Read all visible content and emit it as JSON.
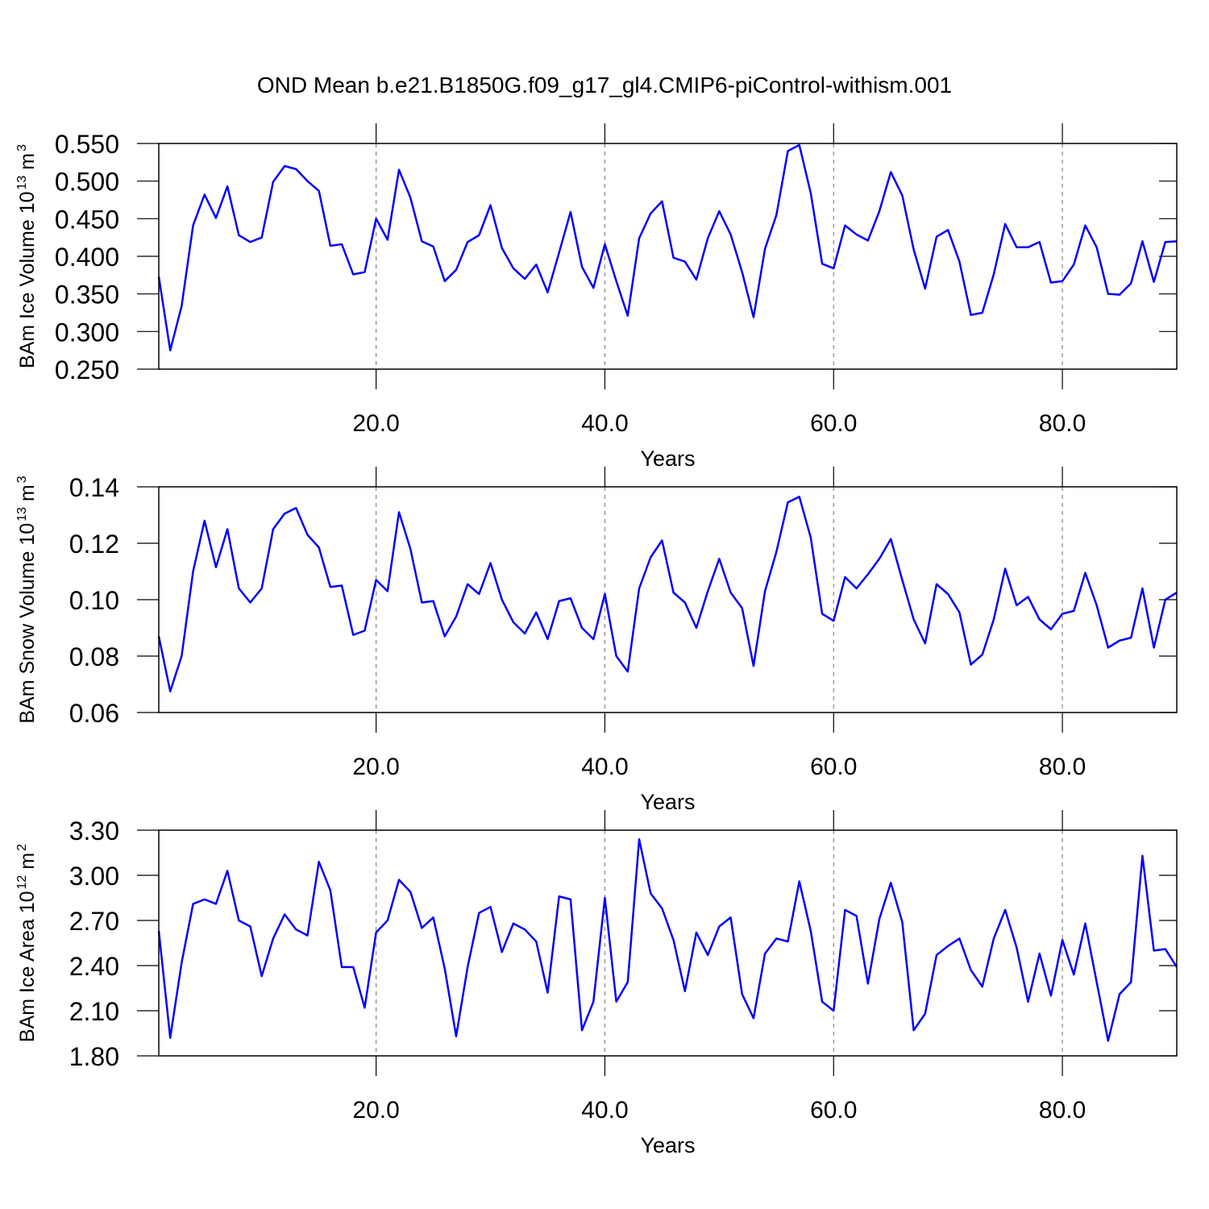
{
  "chart_data": [
    {
      "type": "line",
      "title": "OND Mean b.e21.B1850G.f09_g17_gl4.CMIP6-piControl-withism.001",
      "ylabel": [
        "BAm Ice Volume 10",
        "13",
        "m",
        "3"
      ],
      "xlabel": "Years",
      "x": [
        1,
        2,
        3,
        4,
        5,
        6,
        7,
        8,
        9,
        10,
        11,
        12,
        13,
        14,
        15,
        16,
        17,
        18,
        19,
        20,
        21,
        22,
        23,
        24,
        25,
        26,
        27,
        28,
        29,
        30,
        31,
        32,
        33,
        34,
        35,
        36,
        37,
        38,
        39,
        40,
        41,
        42,
        43,
        44,
        45,
        46,
        47,
        48,
        49,
        50,
        51,
        52,
        53,
        54,
        55,
        56,
        57,
        58,
        59,
        60,
        61,
        62,
        63,
        64,
        65,
        66,
        67,
        68,
        69,
        70,
        71,
        72,
        73,
        74,
        75,
        76,
        77,
        78,
        79,
        80,
        81,
        82,
        83,
        84,
        85,
        86,
        87,
        88,
        89,
        90
      ],
      "series": [
        {
          "color": "#0000ff",
          "values": [
            0.373,
            0.275,
            0.334,
            0.441,
            0.482,
            0.451,
            0.493,
            0.428,
            0.419,
            0.425,
            0.499,
            0.52,
            0.516,
            0.5,
            0.487,
            0.414,
            0.416,
            0.376,
            0.379,
            0.45,
            0.422,
            0.515,
            0.478,
            0.42,
            0.413,
            0.367,
            0.382,
            0.419,
            0.428,
            0.468,
            0.411,
            0.384,
            0.37,
            0.389,
            0.352,
            0.405,
            0.459,
            0.386,
            0.358,
            0.416,
            0.367,
            0.321,
            0.424,
            0.457,
            0.473,
            0.398,
            0.393,
            0.369,
            0.424,
            0.46,
            0.429,
            0.379,
            0.319,
            0.41,
            0.455,
            0.54,
            0.548,
            0.484,
            0.39,
            0.384,
            0.441,
            0.429,
            0.421,
            0.46,
            0.512,
            0.481,
            0.409,
            0.357,
            0.426,
            0.435,
            0.393,
            0.322,
            0.325,
            0.376,
            0.443,
            0.412,
            0.412,
            0.419,
            0.365,
            0.367,
            0.389,
            0.441,
            0.412,
            0.35,
            0.349,
            0.364,
            0.42,
            0.366,
            0.419,
            0.42
          ]
        }
      ],
      "xlim": [
        1,
        90
      ],
      "xticks": [
        {
          "value": 20,
          "label": "20.0"
        },
        {
          "value": 40,
          "label": "40.0"
        },
        {
          "value": 60,
          "label": "60.0"
        },
        {
          "value": 80,
          "label": "80.0"
        }
      ],
      "ylim": [
        0.25,
        0.55
      ],
      "yticks": [
        {
          "value": 0.25,
          "label": "0.250"
        },
        {
          "value": 0.3,
          "label": "0.300"
        },
        {
          "value": 0.35,
          "label": "0.350"
        },
        {
          "value": 0.4,
          "label": "0.400"
        },
        {
          "value": 0.45,
          "label": "0.450"
        },
        {
          "value": 0.5,
          "label": "0.500"
        },
        {
          "value": 0.55,
          "label": "0.550"
        }
      ],
      "grid": true
    },
    {
      "type": "line",
      "ylabel": [
        "BAm Snow Volume 10",
        "13",
        "m",
        "3"
      ],
      "xlabel": "Years",
      "x": [
        1,
        2,
        3,
        4,
        5,
        6,
        7,
        8,
        9,
        10,
        11,
        12,
        13,
        14,
        15,
        16,
        17,
        18,
        19,
        20,
        21,
        22,
        23,
        24,
        25,
        26,
        27,
        28,
        29,
        30,
        31,
        32,
        33,
        34,
        35,
        36,
        37,
        38,
        39,
        40,
        41,
        42,
        43,
        44,
        45,
        46,
        47,
        48,
        49,
        50,
        51,
        52,
        53,
        54,
        55,
        56,
        57,
        58,
        59,
        60,
        61,
        62,
        63,
        64,
        65,
        66,
        67,
        68,
        69,
        70,
        71,
        72,
        73,
        74,
        75,
        76,
        77,
        78,
        79,
        80,
        81,
        82,
        83,
        84,
        85,
        86,
        87,
        88,
        89,
        90
      ],
      "series": [
        {
          "color": "#0000ff",
          "values": [
            0.087,
            0.0675,
            0.08,
            0.11,
            0.128,
            0.1115,
            0.125,
            0.104,
            0.099,
            0.104,
            0.125,
            0.1305,
            0.1325,
            0.123,
            0.1185,
            0.1045,
            0.105,
            0.0875,
            0.089,
            0.107,
            0.103,
            0.131,
            0.118,
            0.099,
            0.0995,
            0.087,
            0.094,
            0.1055,
            0.102,
            0.113,
            0.1,
            0.092,
            0.088,
            0.0955,
            0.086,
            0.0995,
            0.1005,
            0.09,
            0.086,
            0.102,
            0.08,
            0.0745,
            0.104,
            0.115,
            0.121,
            0.1025,
            0.099,
            0.09,
            0.103,
            0.1145,
            0.1025,
            0.097,
            0.0765,
            0.103,
            0.117,
            0.1345,
            0.1365,
            0.122,
            0.095,
            0.0925,
            0.108,
            0.104,
            0.109,
            0.1145,
            0.1215,
            0.107,
            0.093,
            0.0845,
            0.1055,
            0.102,
            0.0955,
            0.077,
            0.0805,
            0.093,
            0.111,
            0.098,
            0.101,
            0.093,
            0.0895,
            0.095,
            0.096,
            0.1095,
            0.098,
            0.083,
            0.0855,
            0.0865,
            0.104,
            0.083,
            0.1,
            0.1025
          ]
        }
      ],
      "xlim": [
        1,
        90
      ],
      "xticks": [
        {
          "value": 20,
          "label": "20.0"
        },
        {
          "value": 40,
          "label": "40.0"
        },
        {
          "value": 60,
          "label": "60.0"
        },
        {
          "value": 80,
          "label": "80.0"
        }
      ],
      "ylim": [
        0.06,
        0.14
      ],
      "yticks": [
        {
          "value": 0.06,
          "label": "0.06"
        },
        {
          "value": 0.08,
          "label": "0.08"
        },
        {
          "value": 0.1,
          "label": "0.10"
        },
        {
          "value": 0.12,
          "label": "0.12"
        },
        {
          "value": 0.14,
          "label": "0.14"
        }
      ],
      "grid": true
    },
    {
      "type": "line",
      "ylabel": [
        "BAm Ice Area 10",
        "12",
        "m",
        "2"
      ],
      "xlabel": "Years",
      "x": [
        1,
        2,
        3,
        4,
        5,
        6,
        7,
        8,
        9,
        10,
        11,
        12,
        13,
        14,
        15,
        16,
        17,
        18,
        19,
        20,
        21,
        22,
        23,
        24,
        25,
        26,
        27,
        28,
        29,
        30,
        31,
        32,
        33,
        34,
        35,
        36,
        37,
        38,
        39,
        40,
        41,
        42,
        43,
        44,
        45,
        46,
        47,
        48,
        49,
        50,
        51,
        52,
        53,
        54,
        55,
        56,
        57,
        58,
        59,
        60,
        61,
        62,
        63,
        64,
        65,
        66,
        67,
        68,
        69,
        70,
        71,
        72,
        73,
        74,
        75,
        76,
        77,
        78,
        79,
        80,
        81,
        82,
        83,
        84,
        85,
        86,
        87,
        88,
        89,
        90
      ],
      "series": [
        {
          "color": "#0000ff",
          "values": [
            2.63,
            1.92,
            2.42,
            2.81,
            2.84,
            2.81,
            3.03,
            2.7,
            2.66,
            2.33,
            2.58,
            2.74,
            2.64,
            2.6,
            3.09,
            2.9,
            2.39,
            2.39,
            2.12,
            2.62,
            2.7,
            2.97,
            2.89,
            2.65,
            2.72,
            2.38,
            1.93,
            2.39,
            2.75,
            2.79,
            2.49,
            2.68,
            2.64,
            2.56,
            2.22,
            2.86,
            2.84,
            1.97,
            2.16,
            2.85,
            2.16,
            2.29,
            3.24,
            2.88,
            2.78,
            2.57,
            2.23,
            2.62,
            2.47,
            2.66,
            2.72,
            2.21,
            2.05,
            2.48,
            2.58,
            2.56,
            2.96,
            2.63,
            2.16,
            2.1,
            2.77,
            2.73,
            2.28,
            2.71,
            2.95,
            2.69,
            1.97,
            2.08,
            2.47,
            2.53,
            2.58,
            2.37,
            2.26,
            2.58,
            2.77,
            2.52,
            2.16,
            2.48,
            2.2,
            2.57,
            2.34,
            2.68,
            2.29,
            1.9,
            2.21,
            2.29,
            3.13,
            2.5,
            2.51,
            2.39
          ]
        }
      ],
      "xlim": [
        1,
        90
      ],
      "xticks": [
        {
          "value": 20,
          "label": "20.0"
        },
        {
          "value": 40,
          "label": "40.0"
        },
        {
          "value": 60,
          "label": "60.0"
        },
        {
          "value": 80,
          "label": "80.0"
        }
      ],
      "ylim": [
        1.8,
        3.3
      ],
      "yticks": [
        {
          "value": 1.8,
          "label": "1.80"
        },
        {
          "value": 2.1,
          "label": "2.10"
        },
        {
          "value": 2.4,
          "label": "2.40"
        },
        {
          "value": 2.7,
          "label": "2.70"
        },
        {
          "value": 3.0,
          "label": "3.00"
        },
        {
          "value": 3.3,
          "label": "3.30"
        }
      ],
      "grid": true
    }
  ]
}
